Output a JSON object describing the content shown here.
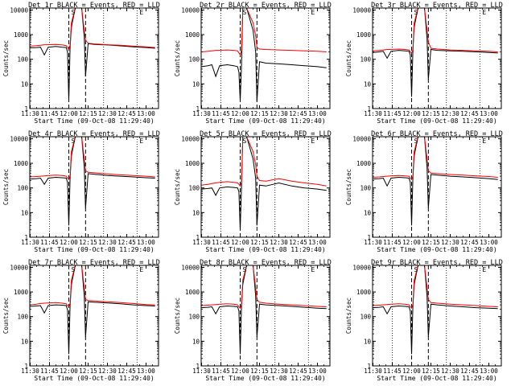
{
  "figure": {
    "xtick_labels": [
      "11:30",
      "11:45",
      "12:00",
      "12:15",
      "12:30",
      "12:45",
      "13:00"
    ],
    "ytick_labels": [
      "1",
      "10",
      "100",
      "1000",
      "10000"
    ],
    "ylabel": "Counts/sec",
    "xlabel": "Start Time (09-Oct-08 11:29:40)",
    "markers": [
      "S",
      "E"
    ],
    "colors": {
      "events": "#000000",
      "lld": "#ff0000",
      "axes": "#000000",
      "background": "#ffffff"
    }
  },
  "chart_data": [
    {
      "type": "line",
      "title": "Det 1r BLACK = Events, RED = LLD",
      "xlim": [
        "11:29:40",
        "13:09:40"
      ],
      "ylim": [
        1,
        12000
      ],
      "yscale": "log",
      "x": [
        "11:30",
        "11:35",
        "11:38",
        "11:41",
        "11:44",
        "11:50",
        "11:55",
        "11:58",
        "11:59",
        "12:00",
        "12:01",
        "12:02",
        "12:05",
        "12:10",
        "12:12",
        "12:13",
        "12:15",
        "12:20",
        "12:30",
        "12:40",
        "12:50",
        "13:00",
        "13:07"
      ],
      "series": [
        {
          "name": "BLACK = Events",
          "values": [
            290,
            300,
            310,
            150,
            310,
            330,
            310,
            300,
            200,
            2,
            300,
            2000,
            12000,
            12000,
            800,
            20,
            430,
            400,
            380,
            350,
            320,
            300,
            280
          ]
        },
        {
          "name": "RED = LLD",
          "values": [
            340,
            360,
            370,
            390,
            390,
            400,
            380,
            360,
            300,
            250,
            380,
            3000,
            12000,
            12000,
            1500,
            600,
            450,
            420,
            390,
            370,
            340,
            320,
            300
          ]
        }
      ],
      "vlines_dotted": [
        "11:45",
        "12:27",
        "12:53"
      ],
      "vlines_dashed": [
        "12:00",
        "12:13"
      ],
      "markers": [
        {
          "label": "S",
          "x": "12:00"
        },
        {
          "label": "E",
          "x": "12:53"
        }
      ]
    },
    {
      "type": "line",
      "title": "Det 2r BLACK = Events, RED = LLD",
      "xlim": [
        "11:29:40",
        "13:09:40"
      ],
      "ylim": [
        1,
        12000
      ],
      "yscale": "log",
      "x": [
        "11:30",
        "11:35",
        "11:38",
        "11:41",
        "11:44",
        "11:50",
        "11:55",
        "11:58",
        "11:59",
        "12:00",
        "12:01",
        "12:02",
        "12:05",
        "12:10",
        "12:12",
        "12:13",
        "12:15",
        "12:20",
        "12:30",
        "12:40",
        "12:50",
        "13:00",
        "13:07"
      ],
      "series": [
        {
          "name": "BLACK = Events",
          "values": [
            50,
            55,
            60,
            20,
            55,
            60,
            55,
            50,
            30,
            2,
            50,
            12000,
            12000,
            1500,
            200,
            2,
            80,
            70,
            65,
            60,
            55,
            50,
            45
          ]
        },
        {
          "name": "RED = LLD",
          "values": [
            200,
            210,
            220,
            230,
            230,
            240,
            230,
            220,
            180,
            150,
            230,
            12000,
            12000,
            3000,
            900,
            300,
            260,
            250,
            240,
            230,
            220,
            210,
            200
          ]
        }
      ],
      "vlines_dotted": [
        "11:45",
        "12:27",
        "12:53"
      ],
      "vlines_dashed": [
        "12:00",
        "12:13"
      ],
      "markers": [
        {
          "label": "S",
          "x": "12:00"
        },
        {
          "label": "E",
          "x": "12:53"
        }
      ]
    },
    {
      "type": "line",
      "title": "Det 3r BLACK = Events, RED = LLD",
      "xlim": [
        "11:29:40",
        "13:09:40"
      ],
      "ylim": [
        1,
        12000
      ],
      "yscale": "log",
      "x": [
        "11:30",
        "11:35",
        "11:38",
        "11:41",
        "11:44",
        "11:50",
        "11:55",
        "11:58",
        "11:59",
        "12:00",
        "12:01",
        "12:02",
        "12:05",
        "12:10",
        "12:12",
        "12:13",
        "12:15",
        "12:20",
        "12:30",
        "12:40",
        "12:50",
        "13:00",
        "13:07"
      ],
      "series": [
        {
          "name": "BLACK = Events",
          "values": [
            190,
            200,
            210,
            110,
            210,
            230,
            220,
            210,
            150,
            3,
            210,
            2000,
            12000,
            12000,
            700,
            15,
            250,
            230,
            220,
            210,
            200,
            190,
            180
          ]
        },
        {
          "name": "RED = LLD",
          "values": [
            220,
            230,
            240,
            250,
            250,
            260,
            250,
            240,
            200,
            180,
            250,
            3000,
            12000,
            12000,
            1500,
            500,
            280,
            260,
            240,
            230,
            220,
            210,
            200
          ]
        }
      ],
      "vlines_dotted": [
        "11:45",
        "12:27",
        "12:53"
      ],
      "vlines_dashed": [
        "12:00",
        "12:13"
      ],
      "markers": [
        {
          "label": "S",
          "x": "12:00"
        },
        {
          "label": "E",
          "x": "12:53"
        }
      ]
    },
    {
      "type": "line",
      "title": "Det 4r BLACK = Events, RED = LLD",
      "xlim": [
        "11:29:40",
        "13:09:40"
      ],
      "ylim": [
        1,
        12000
      ],
      "yscale": "log",
      "x": [
        "11:30",
        "11:35",
        "11:38",
        "11:41",
        "11:44",
        "11:50",
        "11:55",
        "11:58",
        "11:59",
        "12:00",
        "12:01",
        "12:02",
        "12:05",
        "12:10",
        "12:12",
        "12:13",
        "12:15",
        "12:20",
        "12:30",
        "12:40",
        "12:50",
        "13:00",
        "13:07"
      ],
      "series": [
        {
          "name": "BLACK = Events",
          "values": [
            230,
            240,
            250,
            140,
            250,
            270,
            260,
            250,
            170,
            3,
            250,
            2000,
            12000,
            12000,
            700,
            15,
            380,
            360,
            320,
            300,
            280,
            260,
            250
          ]
        },
        {
          "name": "RED = LLD",
          "values": [
            280,
            290,
            300,
            310,
            320,
            330,
            320,
            300,
            250,
            220,
            310,
            3000,
            12000,
            12000,
            1500,
            500,
            430,
            410,
            370,
            340,
            320,
            300,
            280
          ]
        }
      ],
      "vlines_dotted": [
        "11:45",
        "12:27",
        "12:53"
      ],
      "vlines_dashed": [
        "12:00",
        "12:13"
      ],
      "markers": [
        {
          "label": "S",
          "x": "12:00"
        },
        {
          "label": "E",
          "x": "12:53"
        }
      ]
    },
    {
      "type": "line",
      "title": "Det 5r BLACK = Events, RED = LLD",
      "xlim": [
        "11:29:40",
        "13:09:40"
      ],
      "ylim": [
        1,
        12000
      ],
      "yscale": "log",
      "x": [
        "11:30",
        "11:35",
        "11:38",
        "11:41",
        "11:44",
        "11:50",
        "11:55",
        "11:58",
        "11:59",
        "12:00",
        "12:01",
        "12:02",
        "12:05",
        "12:10",
        "12:12",
        "12:13",
        "12:15",
        "12:20",
        "12:30",
        "12:40",
        "12:50",
        "13:00",
        "13:07"
      ],
      "series": [
        {
          "name": "BLACK = Events",
          "values": [
            90,
            95,
            100,
            50,
            100,
            110,
            105,
            100,
            70,
            2,
            100,
            12000,
            12000,
            1500,
            250,
            3,
            130,
            120,
            160,
            120,
            100,
            90,
            80
          ]
        },
        {
          "name": "RED = LLD",
          "values": [
            130,
            140,
            150,
            160,
            170,
            180,
            170,
            160,
            140,
            120,
            170,
            12000,
            12000,
            3000,
            900,
            300,
            200,
            190,
            240,
            190,
            160,
            140,
            120
          ]
        }
      ],
      "vlines_dotted": [
        "11:45",
        "12:27",
        "12:53"
      ],
      "vlines_dashed": [
        "12:00",
        "12:13"
      ],
      "markers": [
        {
          "label": "S",
          "x": "12:00"
        },
        {
          "label": "E",
          "x": "12:53"
        }
      ]
    },
    {
      "type": "line",
      "title": "Det 6r BLACK = Events, RED = LLD",
      "xlim": [
        "11:29:40",
        "13:09:40"
      ],
      "ylim": [
        1,
        12000
      ],
      "yscale": "log",
      "x": [
        "11:30",
        "11:35",
        "11:38",
        "11:41",
        "11:44",
        "11:50",
        "11:55",
        "11:58",
        "11:59",
        "12:00",
        "12:01",
        "12:02",
        "12:05",
        "12:10",
        "12:12",
        "12:13",
        "12:15",
        "12:20",
        "12:30",
        "12:40",
        "12:50",
        "13:00",
        "13:07"
      ],
      "series": [
        {
          "name": "BLACK = Events",
          "values": [
            230,
            240,
            250,
            120,
            250,
            270,
            260,
            250,
            170,
            3,
            250,
            2000,
            12000,
            12000,
            700,
            15,
            350,
            330,
            300,
            280,
            260,
            240,
            220
          ]
        },
        {
          "name": "RED = LLD",
          "values": [
            270,
            280,
            290,
            300,
            310,
            320,
            310,
            300,
            250,
            220,
            300,
            3000,
            12000,
            12000,
            1500,
            500,
            400,
            380,
            350,
            330,
            310,
            290,
            270
          ]
        }
      ],
      "vlines_dotted": [
        "11:45",
        "12:27",
        "12:53"
      ],
      "vlines_dashed": [
        "12:00",
        "12:13"
      ],
      "markers": [
        {
          "label": "S",
          "x": "12:00"
        },
        {
          "label": "E",
          "x": "12:53"
        }
      ]
    },
    {
      "type": "line",
      "title": "Det 7r BLACK = Events, RED = LLD",
      "xlim": [
        "11:29:40",
        "13:09:40"
      ],
      "ylim": [
        1,
        12000
      ],
      "yscale": "log",
      "x": [
        "11:30",
        "11:35",
        "11:38",
        "11:41",
        "11:44",
        "11:50",
        "11:55",
        "11:58",
        "11:59",
        "12:00",
        "12:01",
        "12:02",
        "12:05",
        "12:10",
        "12:12",
        "12:13",
        "12:15",
        "12:20",
        "12:30",
        "12:40",
        "12:50",
        "13:00",
        "13:07"
      ],
      "series": [
        {
          "name": "BLACK = Events",
          "values": [
            260,
            270,
            280,
            140,
            280,
            300,
            290,
            280,
            190,
            3,
            280,
            2000,
            12000,
            12000,
            700,
            15,
            400,
            380,
            360,
            330,
            300,
            280,
            270
          ]
        },
        {
          "name": "RED = LLD",
          "values": [
            300,
            320,
            340,
            350,
            360,
            370,
            350,
            330,
            280,
            250,
            350,
            3000,
            12000,
            12000,
            1500,
            500,
            450,
            430,
            400,
            370,
            340,
            310,
            300
          ]
        }
      ],
      "vlines_dotted": [
        "11:45",
        "12:27",
        "12:53"
      ],
      "vlines_dashed": [
        "12:00",
        "12:13"
      ],
      "markers": [
        {
          "label": "S",
          "x": "12:00"
        },
        {
          "label": "E",
          "x": "12:53"
        }
      ]
    },
    {
      "type": "line",
      "title": "Det 8r BLACK = Events, RED = LLD",
      "xlim": [
        "11:29:40",
        "13:09:40"
      ],
      "ylim": [
        1,
        12000
      ],
      "yscale": "log",
      "x": [
        "11:30",
        "11:35",
        "11:38",
        "11:41",
        "11:44",
        "11:50",
        "11:55",
        "11:58",
        "11:59",
        "12:00",
        "12:01",
        "12:02",
        "12:05",
        "12:10",
        "12:12",
        "12:13",
        "12:15",
        "12:20",
        "12:30",
        "12:40",
        "12:50",
        "13:00",
        "13:07"
      ],
      "series": [
        {
          "name": "BLACK = Events",
          "values": [
            230,
            240,
            250,
            130,
            250,
            270,
            260,
            250,
            170,
            3,
            250,
            2000,
            12000,
            12000,
            700,
            15,
            320,
            300,
            280,
            260,
            240,
            220,
            210
          ]
        },
        {
          "name": "RED = LLD",
          "values": [
            280,
            290,
            300,
            310,
            320,
            330,
            320,
            300,
            250,
            220,
            310,
            3000,
            12000,
            12000,
            1500,
            500,
            380,
            350,
            320,
            300,
            280,
            260,
            250
          ]
        }
      ],
      "vlines_dotted": [
        "11:45",
        "12:27",
        "12:53"
      ],
      "vlines_dashed": [
        "12:00",
        "12:13"
      ],
      "markers": [
        {
          "label": "S",
          "x": "12:00"
        },
        {
          "label": "E",
          "x": "12:53"
        }
      ]
    },
    {
      "type": "line",
      "title": "Det 9r BLACK = Events, RED = LLD",
      "xlim": [
        "11:29:40",
        "13:09:40"
      ],
      "ylim": [
        1,
        12000
      ],
      "yscale": "log",
      "x": [
        "11:30",
        "11:35",
        "11:38",
        "11:41",
        "11:44",
        "11:50",
        "11:55",
        "11:58",
        "11:59",
        "12:00",
        "12:01",
        "12:02",
        "12:05",
        "12:10",
        "12:12",
        "12:13",
        "12:15",
        "12:20",
        "12:30",
        "12:40",
        "12:50",
        "13:00",
        "13:07"
      ],
      "series": [
        {
          "name": "BLACK = Events",
          "values": [
            230,
            240,
            250,
            130,
            250,
            270,
            260,
            250,
            170,
            3,
            250,
            2000,
            12000,
            12000,
            700,
            15,
            320,
            300,
            270,
            250,
            230,
            220,
            210
          ]
        },
        {
          "name": "RED = LLD",
          "values": [
            280,
            290,
            300,
            310,
            320,
            330,
            320,
            300,
            250,
            220,
            310,
            3000,
            12000,
            12000,
            1500,
            500,
            370,
            350,
            320,
            300,
            280,
            260,
            250
          ]
        }
      ],
      "vlines_dotted": [
        "11:45",
        "12:27",
        "12:53"
      ],
      "vlines_dashed": [
        "12:00",
        "12:13"
      ],
      "markers": [
        {
          "label": "S",
          "x": "12:00"
        },
        {
          "label": "E",
          "x": "12:53"
        }
      ]
    }
  ]
}
